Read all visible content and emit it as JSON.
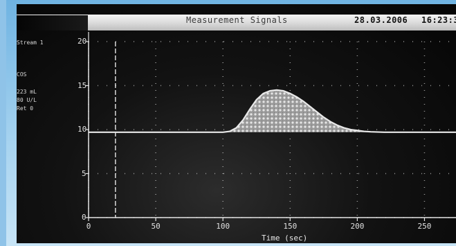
{
  "window": {
    "title": "Measurement Signals",
    "date": "28.03.2006",
    "time": "16:23:3"
  },
  "sidebar": {
    "channel_label": "Stream 1",
    "param_lines": [
      "COS",
      "223 mL",
      "80 U/L",
      "Ret 0"
    ]
  },
  "chart_data": {
    "type": "area",
    "title": "",
    "xlabel": "Time (sec)",
    "ylabel": "",
    "xlim": [
      0,
      275
    ],
    "ylim": [
      0,
      20
    ],
    "x_ticks": [
      0,
      50,
      100,
      150,
      200,
      250
    ],
    "y_ticks": [
      0,
      5,
      10,
      15,
      20
    ],
    "baseline": 9.7,
    "grid": true,
    "series": [
      {
        "x": [
          0,
          20,
          40,
          60,
          80,
          100,
          105,
          110,
          115,
          120,
          125,
          130,
          135,
          140,
          145,
          150,
          155,
          160,
          165,
          170,
          175,
          180,
          185,
          190,
          195,
          200,
          205,
          210,
          220,
          240,
          260,
          275
        ],
        "values": [
          9.7,
          9.7,
          9.7,
          9.7,
          9.7,
          9.7,
          9.8,
          10.2,
          11.1,
          12.3,
          13.4,
          14.1,
          14.4,
          14.5,
          14.4,
          14.1,
          13.7,
          13.2,
          12.6,
          12.0,
          11.4,
          10.9,
          10.5,
          10.2,
          10.0,
          9.9,
          9.8,
          9.75,
          9.7,
          9.7,
          9.7,
          9.7
        ]
      }
    ],
    "vertical_marker_x": 20
  }
}
